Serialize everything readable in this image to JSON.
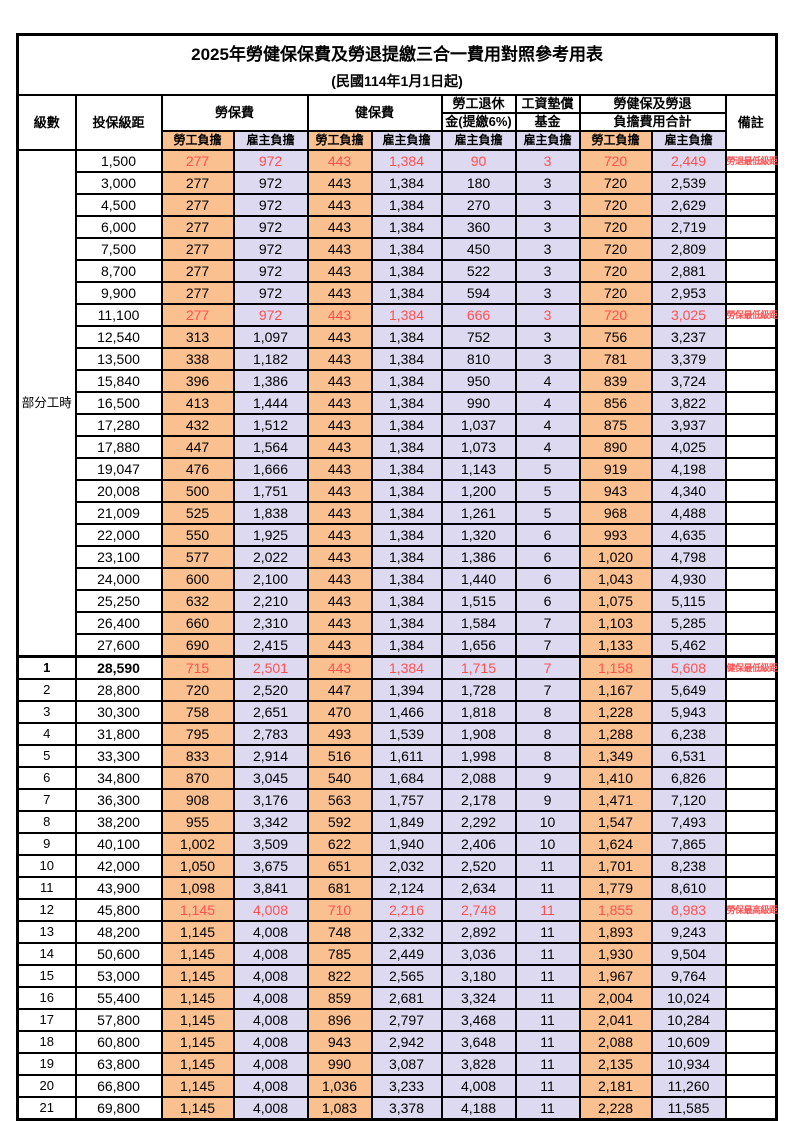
{
  "title": "2025年勞健保保費及勞退提繳三合一費用對照參考用表",
  "subtitle": "(民國114年1月1日起)",
  "colors": {
    "employee_bg": "#FAC090",
    "employer_bg": "#DCD9F0",
    "highlight_text": "#FF5050"
  },
  "columns": {
    "level": "級數",
    "bracket": "投保級距",
    "labor": "勞保費",
    "health": "健保費",
    "pension_l1": "勞工退休",
    "pension_l2": "金(提繳6%)",
    "fund_l1": "工資墊償",
    "fund_l2": "基金",
    "total_l1": "勞健保及勞退",
    "total_l2": "負擔費用合計",
    "note": "備註",
    "employee": "勞工負擔",
    "employer": "雇主負擔"
  },
  "part_time_label": "部分工時",
  "rows": [
    {
      "group_label": "部分工時",
      "group_span": 23,
      "bracket": "1,500",
      "values": [
        "277",
        "972",
        "443",
        "1,384",
        "90",
        "3",
        "720",
        "2,449"
      ],
      "note": "勞退最低級距",
      "red": true
    },
    {
      "bracket": "3,000",
      "values": [
        "277",
        "972",
        "443",
        "1,384",
        "180",
        "3",
        "720",
        "2,539"
      ]
    },
    {
      "bracket": "4,500",
      "values": [
        "277",
        "972",
        "443",
        "1,384",
        "270",
        "3",
        "720",
        "2,629"
      ]
    },
    {
      "bracket": "6,000",
      "values": [
        "277",
        "972",
        "443",
        "1,384",
        "360",
        "3",
        "720",
        "2,719"
      ]
    },
    {
      "bracket": "7,500",
      "values": [
        "277",
        "972",
        "443",
        "1,384",
        "450",
        "3",
        "720",
        "2,809"
      ]
    },
    {
      "bracket": "8,700",
      "values": [
        "277",
        "972",
        "443",
        "1,384",
        "522",
        "3",
        "720",
        "2,881"
      ]
    },
    {
      "bracket": "9,900",
      "values": [
        "277",
        "972",
        "443",
        "1,384",
        "594",
        "3",
        "720",
        "2,953"
      ]
    },
    {
      "bracket": "11,100",
      "values": [
        "277",
        "972",
        "443",
        "1,384",
        "666",
        "3",
        "720",
        "3,025"
      ],
      "note": "勞保最低級距",
      "red": true
    },
    {
      "bracket": "12,540",
      "values": [
        "313",
        "1,097",
        "443",
        "1,384",
        "752",
        "3",
        "756",
        "3,237"
      ]
    },
    {
      "bracket": "13,500",
      "values": [
        "338",
        "1,182",
        "443",
        "1,384",
        "810",
        "3",
        "781",
        "3,379"
      ]
    },
    {
      "bracket": "15,840",
      "values": [
        "396",
        "1,386",
        "443",
        "1,384",
        "950",
        "4",
        "839",
        "3,724"
      ]
    },
    {
      "bracket": "16,500",
      "values": [
        "413",
        "1,444",
        "443",
        "1,384",
        "990",
        "4",
        "856",
        "3,822"
      ]
    },
    {
      "bracket": "17,280",
      "values": [
        "432",
        "1,512",
        "443",
        "1,384",
        "1,037",
        "4",
        "875",
        "3,937"
      ]
    },
    {
      "bracket": "17,880",
      "values": [
        "447",
        "1,564",
        "443",
        "1,384",
        "1,073",
        "4",
        "890",
        "4,025"
      ]
    },
    {
      "bracket": "19,047",
      "values": [
        "476",
        "1,666",
        "443",
        "1,384",
        "1,143",
        "5",
        "919",
        "4,198"
      ]
    },
    {
      "bracket": "20,008",
      "values": [
        "500",
        "1,751",
        "443",
        "1,384",
        "1,200",
        "5",
        "943",
        "4,340"
      ]
    },
    {
      "bracket": "21,009",
      "values": [
        "525",
        "1,838",
        "443",
        "1,384",
        "1,261",
        "5",
        "968",
        "4,488"
      ]
    },
    {
      "bracket": "22,000",
      "values": [
        "550",
        "1,925",
        "443",
        "1,384",
        "1,320",
        "6",
        "993",
        "4,635"
      ]
    },
    {
      "bracket": "23,100",
      "values": [
        "577",
        "2,022",
        "443",
        "1,384",
        "1,386",
        "6",
        "1,020",
        "4,798"
      ]
    },
    {
      "bracket": "24,000",
      "values": [
        "600",
        "2,100",
        "443",
        "1,384",
        "1,440",
        "6",
        "1,043",
        "4,930"
      ]
    },
    {
      "bracket": "25,250",
      "values": [
        "632",
        "2,210",
        "443",
        "1,384",
        "1,515",
        "6",
        "1,075",
        "5,115"
      ]
    },
    {
      "bracket": "26,400",
      "values": [
        "660",
        "2,310",
        "443",
        "1,384",
        "1,584",
        "7",
        "1,103",
        "5,285"
      ]
    },
    {
      "bracket": "27,600",
      "values": [
        "690",
        "2,415",
        "443",
        "1,384",
        "1,656",
        "7",
        "1,133",
        "5,462"
      ]
    },
    {
      "level": "1",
      "bracket": "28,590",
      "values": [
        "715",
        "2,501",
        "443",
        "1,384",
        "1,715",
        "7",
        "1,158",
        "5,608"
      ],
      "note": "健保最低級距",
      "red": true,
      "sect": true,
      "bold": true
    },
    {
      "level": "2",
      "bracket": "28,800",
      "values": [
        "720",
        "2,520",
        "447",
        "1,394",
        "1,728",
        "7",
        "1,167",
        "5,649"
      ]
    },
    {
      "level": "3",
      "bracket": "30,300",
      "values": [
        "758",
        "2,651",
        "470",
        "1,466",
        "1,818",
        "8",
        "1,228",
        "5,943"
      ]
    },
    {
      "level": "4",
      "bracket": "31,800",
      "values": [
        "795",
        "2,783",
        "493",
        "1,539",
        "1,908",
        "8",
        "1,288",
        "6,238"
      ]
    },
    {
      "level": "5",
      "bracket": "33,300",
      "values": [
        "833",
        "2,914",
        "516",
        "1,611",
        "1,998",
        "8",
        "1,349",
        "6,531"
      ]
    },
    {
      "level": "6",
      "bracket": "34,800",
      "values": [
        "870",
        "3,045",
        "540",
        "1,684",
        "2,088",
        "9",
        "1,410",
        "6,826"
      ]
    },
    {
      "level": "7",
      "bracket": "36,300",
      "values": [
        "908",
        "3,176",
        "563",
        "1,757",
        "2,178",
        "9",
        "1,471",
        "7,120"
      ]
    },
    {
      "level": "8",
      "bracket": "38,200",
      "values": [
        "955",
        "3,342",
        "592",
        "1,849",
        "2,292",
        "10",
        "1,547",
        "7,493"
      ]
    },
    {
      "level": "9",
      "bracket": "40,100",
      "values": [
        "1,002",
        "3,509",
        "622",
        "1,940",
        "2,406",
        "10",
        "1,624",
        "7,865"
      ]
    },
    {
      "level": "10",
      "bracket": "42,000",
      "values": [
        "1,050",
        "3,675",
        "651",
        "2,032",
        "2,520",
        "11",
        "1,701",
        "8,238"
      ]
    },
    {
      "level": "11",
      "bracket": "43,900",
      "values": [
        "1,098",
        "3,841",
        "681",
        "2,124",
        "2,634",
        "11",
        "1,779",
        "8,610"
      ]
    },
    {
      "level": "12",
      "bracket": "45,800",
      "values": [
        "1,145",
        "4,008",
        "710",
        "2,216",
        "2,748",
        "11",
        "1,855",
        "8,983"
      ],
      "note": "勞保最高級距",
      "red": true
    },
    {
      "level": "13",
      "bracket": "48,200",
      "values": [
        "1,145",
        "4,008",
        "748",
        "2,332",
        "2,892",
        "11",
        "1,893",
        "9,243"
      ]
    },
    {
      "level": "14",
      "bracket": "50,600",
      "values": [
        "1,145",
        "4,008",
        "785",
        "2,449",
        "3,036",
        "11",
        "1,930",
        "9,504"
      ]
    },
    {
      "level": "15",
      "bracket": "53,000",
      "values": [
        "1,145",
        "4,008",
        "822",
        "2,565",
        "3,180",
        "11",
        "1,967",
        "9,764"
      ]
    },
    {
      "level": "16",
      "bracket": "55,400",
      "values": [
        "1,145",
        "4,008",
        "859",
        "2,681",
        "3,324",
        "11",
        "2,004",
        "10,024"
      ]
    },
    {
      "level": "17",
      "bracket": "57,800",
      "values": [
        "1,145",
        "4,008",
        "896",
        "2,797",
        "3,468",
        "11",
        "2,041",
        "10,284"
      ]
    },
    {
      "level": "18",
      "bracket": "60,800",
      "values": [
        "1,145",
        "4,008",
        "943",
        "2,942",
        "3,648",
        "11",
        "2,088",
        "10,609"
      ]
    },
    {
      "level": "19",
      "bracket": "63,800",
      "values": [
        "1,145",
        "4,008",
        "990",
        "3,087",
        "3,828",
        "11",
        "2,135",
        "10,934"
      ]
    },
    {
      "level": "20",
      "bracket": "66,800",
      "values": [
        "1,145",
        "4,008",
        "1,036",
        "3,233",
        "4,008",
        "11",
        "2,181",
        "11,260"
      ]
    },
    {
      "level": "21",
      "bracket": "69,800",
      "values": [
        "1,145",
        "4,008",
        "1,083",
        "3,378",
        "4,188",
        "11",
        "2,228",
        "11,585"
      ]
    }
  ]
}
